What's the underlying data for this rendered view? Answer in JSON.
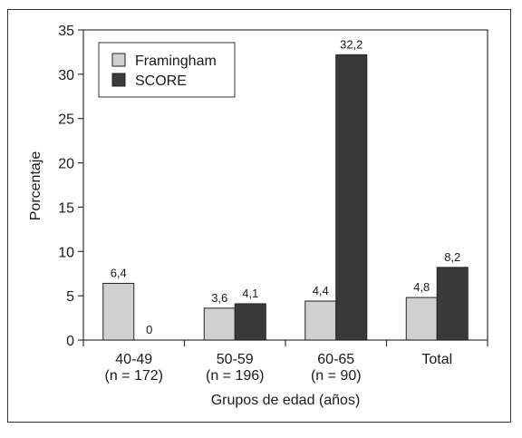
{
  "chart_data": {
    "type": "bar",
    "title": "",
    "xlabel": "Grupos de edad (años)",
    "ylabel": "Porcentaje",
    "ylim": [
      0,
      35
    ],
    "yticks": [
      0,
      5,
      10,
      15,
      20,
      25,
      30,
      35
    ],
    "categories": [
      {
        "line1": "40-49",
        "line2": "(n = 172)"
      },
      {
        "line1": "50-59",
        "line2": "(n = 196)"
      },
      {
        "line1": "60-65",
        "line2": "(n = 90)"
      },
      {
        "line1": "Total",
        "line2": ""
      }
    ],
    "series": [
      {
        "name": "Framingham",
        "color": "#d0d0d0",
        "values": [
          6.4,
          3.6,
          4.4,
          4.8
        ],
        "labels": [
          "6,4",
          "3,6",
          "4,4",
          "4,8"
        ]
      },
      {
        "name": "SCORE",
        "color": "#3a3a3a",
        "values": [
          0,
          4.1,
          32.2,
          8.2
        ],
        "labels": [
          "0",
          "4,1",
          "32,2",
          "8,2"
        ]
      }
    ],
    "legend": "top-left",
    "grid": false
  }
}
